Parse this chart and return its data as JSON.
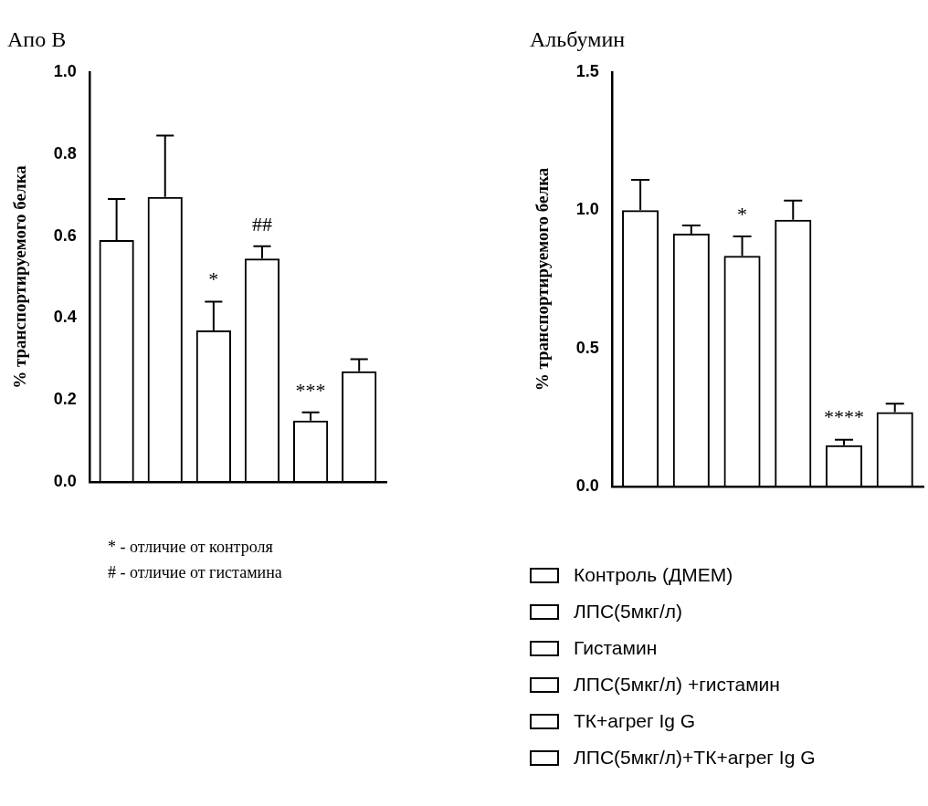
{
  "chart_data": [
    {
      "type": "bar",
      "title": "Апо В",
      "ylabel": "% транспортируемого белка",
      "categories": [
        null
      ],
      "ylim": [
        0,
        1.0
      ],
      "yticks": [
        {
          "value": 0,
          "label": "0.0"
        },
        {
          "value": 0.2,
          "label": "0.2"
        },
        {
          "value": 0.4,
          "label": "0.4"
        },
        {
          "value": 0.6,
          "label": "0.6"
        },
        {
          "value": 0.8,
          "label": "0.8"
        },
        {
          "value": 1.0,
          "label": "1.0"
        }
      ],
      "tick_labels": "y",
      "annotations": [
        "* - отличие от контроля",
        "# - отличие от гистамина"
      ],
      "series": [
        {
          "color": "#000000",
          "values": [
            0.59
          ],
          "errors": [
            [
              0.59,
              0.69
            ]
          ]
        },
        {
          "color": "#000000",
          "values": [
            0.695
          ],
          "errors": [
            [
              0.695,
              0.845
            ]
          ]
        },
        {
          "color": "#000000",
          "values": [
            0.37
          ],
          "errors": [
            [
              0.37,
              0.44
            ]
          ],
          "value_labels": [
            "*"
          ]
        },
        {
          "color": "#000000",
          "values": [
            0.545
          ],
          "errors": [
            [
              0.545,
              0.575
            ]
          ],
          "value_labels": [
            "##"
          ]
        },
        {
          "color": "#000000",
          "values": [
            0.15
          ],
          "errors": [
            [
              0.15,
              0.17
            ]
          ],
          "value_labels": [
            "***"
          ]
        },
        {
          "color": "#000000",
          "values": [
            0.27
          ],
          "errors": [
            [
              0.27,
              0.3
            ]
          ]
        }
      ]
    },
    {
      "type": "bar",
      "title": "Альбумин",
      "ylabel": "% транспортируемого белка",
      "categories": [
        null
      ],
      "ylim": [
        0,
        1.5
      ],
      "yticks": [
        {
          "value": 0,
          "label": "0.0"
        },
        {
          "value": 0.5,
          "label": "0.5"
        },
        {
          "value": 1.0,
          "label": "1.0"
        },
        {
          "value": 1.5,
          "label": "1.5"
        }
      ],
      "tick_labels": "y",
      "legend": "bottom",
      "series": [
        {
          "name": "Контроль (ДМЕМ)",
          "color": "#000000",
          "values": [
            1.0
          ],
          "errors": [
            [
              1.0,
              1.11
            ]
          ]
        },
        {
          "name": "ЛПС(5мкг/л)",
          "color": "#000000",
          "values": [
            0.915
          ],
          "errors": [
            [
              0.915,
              0.945
            ]
          ]
        },
        {
          "name": "Гистамин",
          "color": "#000000",
          "values": [
            0.835
          ],
          "errors": [
            [
              0.835,
              0.905
            ]
          ],
          "value_labels": [
            "*"
          ]
        },
        {
          "name": "ЛПС(5мкг/л) +гистамин",
          "color": "#000000",
          "values": [
            0.965
          ],
          "errors": [
            [
              0.965,
              1.035
            ]
          ]
        },
        {
          "name": "ТК+агрег Ig G",
          "color": "#000000",
          "values": [
            0.15
          ],
          "errors": [
            [
              0.15,
              0.17
            ]
          ],
          "value_labels": [
            "****"
          ]
        },
        {
          "name": "ЛПС(5мкг/л)+ТК+агрег Ig G",
          "color": "#000000",
          "values": [
            0.27
          ],
          "errors": [
            [
              0.27,
              0.3
            ]
          ]
        }
      ]
    }
  ]
}
